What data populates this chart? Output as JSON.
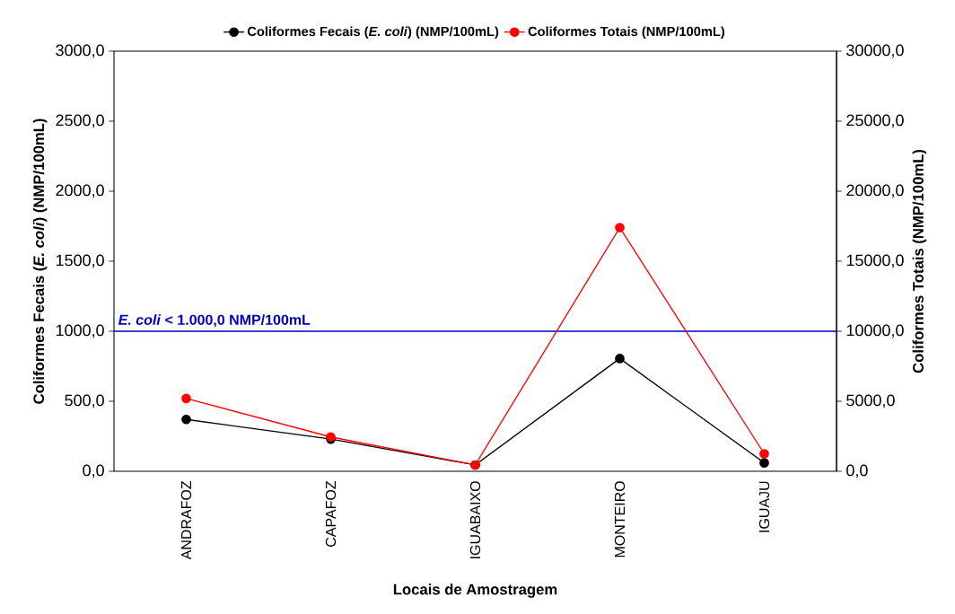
{
  "chart_data": {
    "type": "line",
    "categories": [
      "ANDRAFOZ",
      "CAPAFOZ",
      "IGUABAIXO",
      "MONTEIRO",
      "IGUAJU"
    ],
    "series": [
      {
        "name": "Coliformes Fecais (*E. coli*) (NMP/100mL)",
        "color": "#000000",
        "values": [
          370,
          230,
          45,
          805,
          60
        ]
      },
      {
        "name": "Coliformes Totais (NMP/100mL)",
        "color": "#ff0000",
        "axis": "y2",
        "values": [
          5200,
          2450,
          450,
          17400,
          1250
        ]
      }
    ],
    "xlabel": "Locais de Amostragem",
    "ylabel": "Coliformes Fecais (*E. coli*) (NMP/100mL)",
    "y2label": "Coliformes Totais (NMP/100mL)",
    "ylim": [
      0,
      3000
    ],
    "yticks": [
      {
        "value": 0,
        "label": "0,0"
      },
      {
        "value": 500,
        "label": "500,0"
      },
      {
        "value": 1000,
        "label": "1000,0"
      },
      {
        "value": 1500,
        "label": "1500,0"
      },
      {
        "value": 2000,
        "label": "2000,0"
      },
      {
        "value": 2500,
        "label": "2500,0"
      },
      {
        "value": 3000,
        "label": "3000,0"
      }
    ],
    "y2lim": [
      0,
      30000
    ],
    "y2ticks": [
      {
        "value": 0,
        "label": "0,0"
      },
      {
        "value": 5000,
        "label": "5000,0"
      },
      {
        "value": 10000,
        "label": "10000,0"
      },
      {
        "value": 15000,
        "label": "15000,0"
      },
      {
        "value": 20000,
        "label": "20000,0"
      },
      {
        "value": 25000,
        "label": "25000,0"
      },
      {
        "value": 30000,
        "label": "30000,0"
      }
    ],
    "ref_lines": [
      {
        "axis": "y",
        "value": 1000,
        "label": "*E. coli* < 1.000,0 NMP/100mL",
        "color": "#0000cc",
        "line_style": "solid"
      }
    ],
    "legend": "top",
    "marker": "circle"
  }
}
